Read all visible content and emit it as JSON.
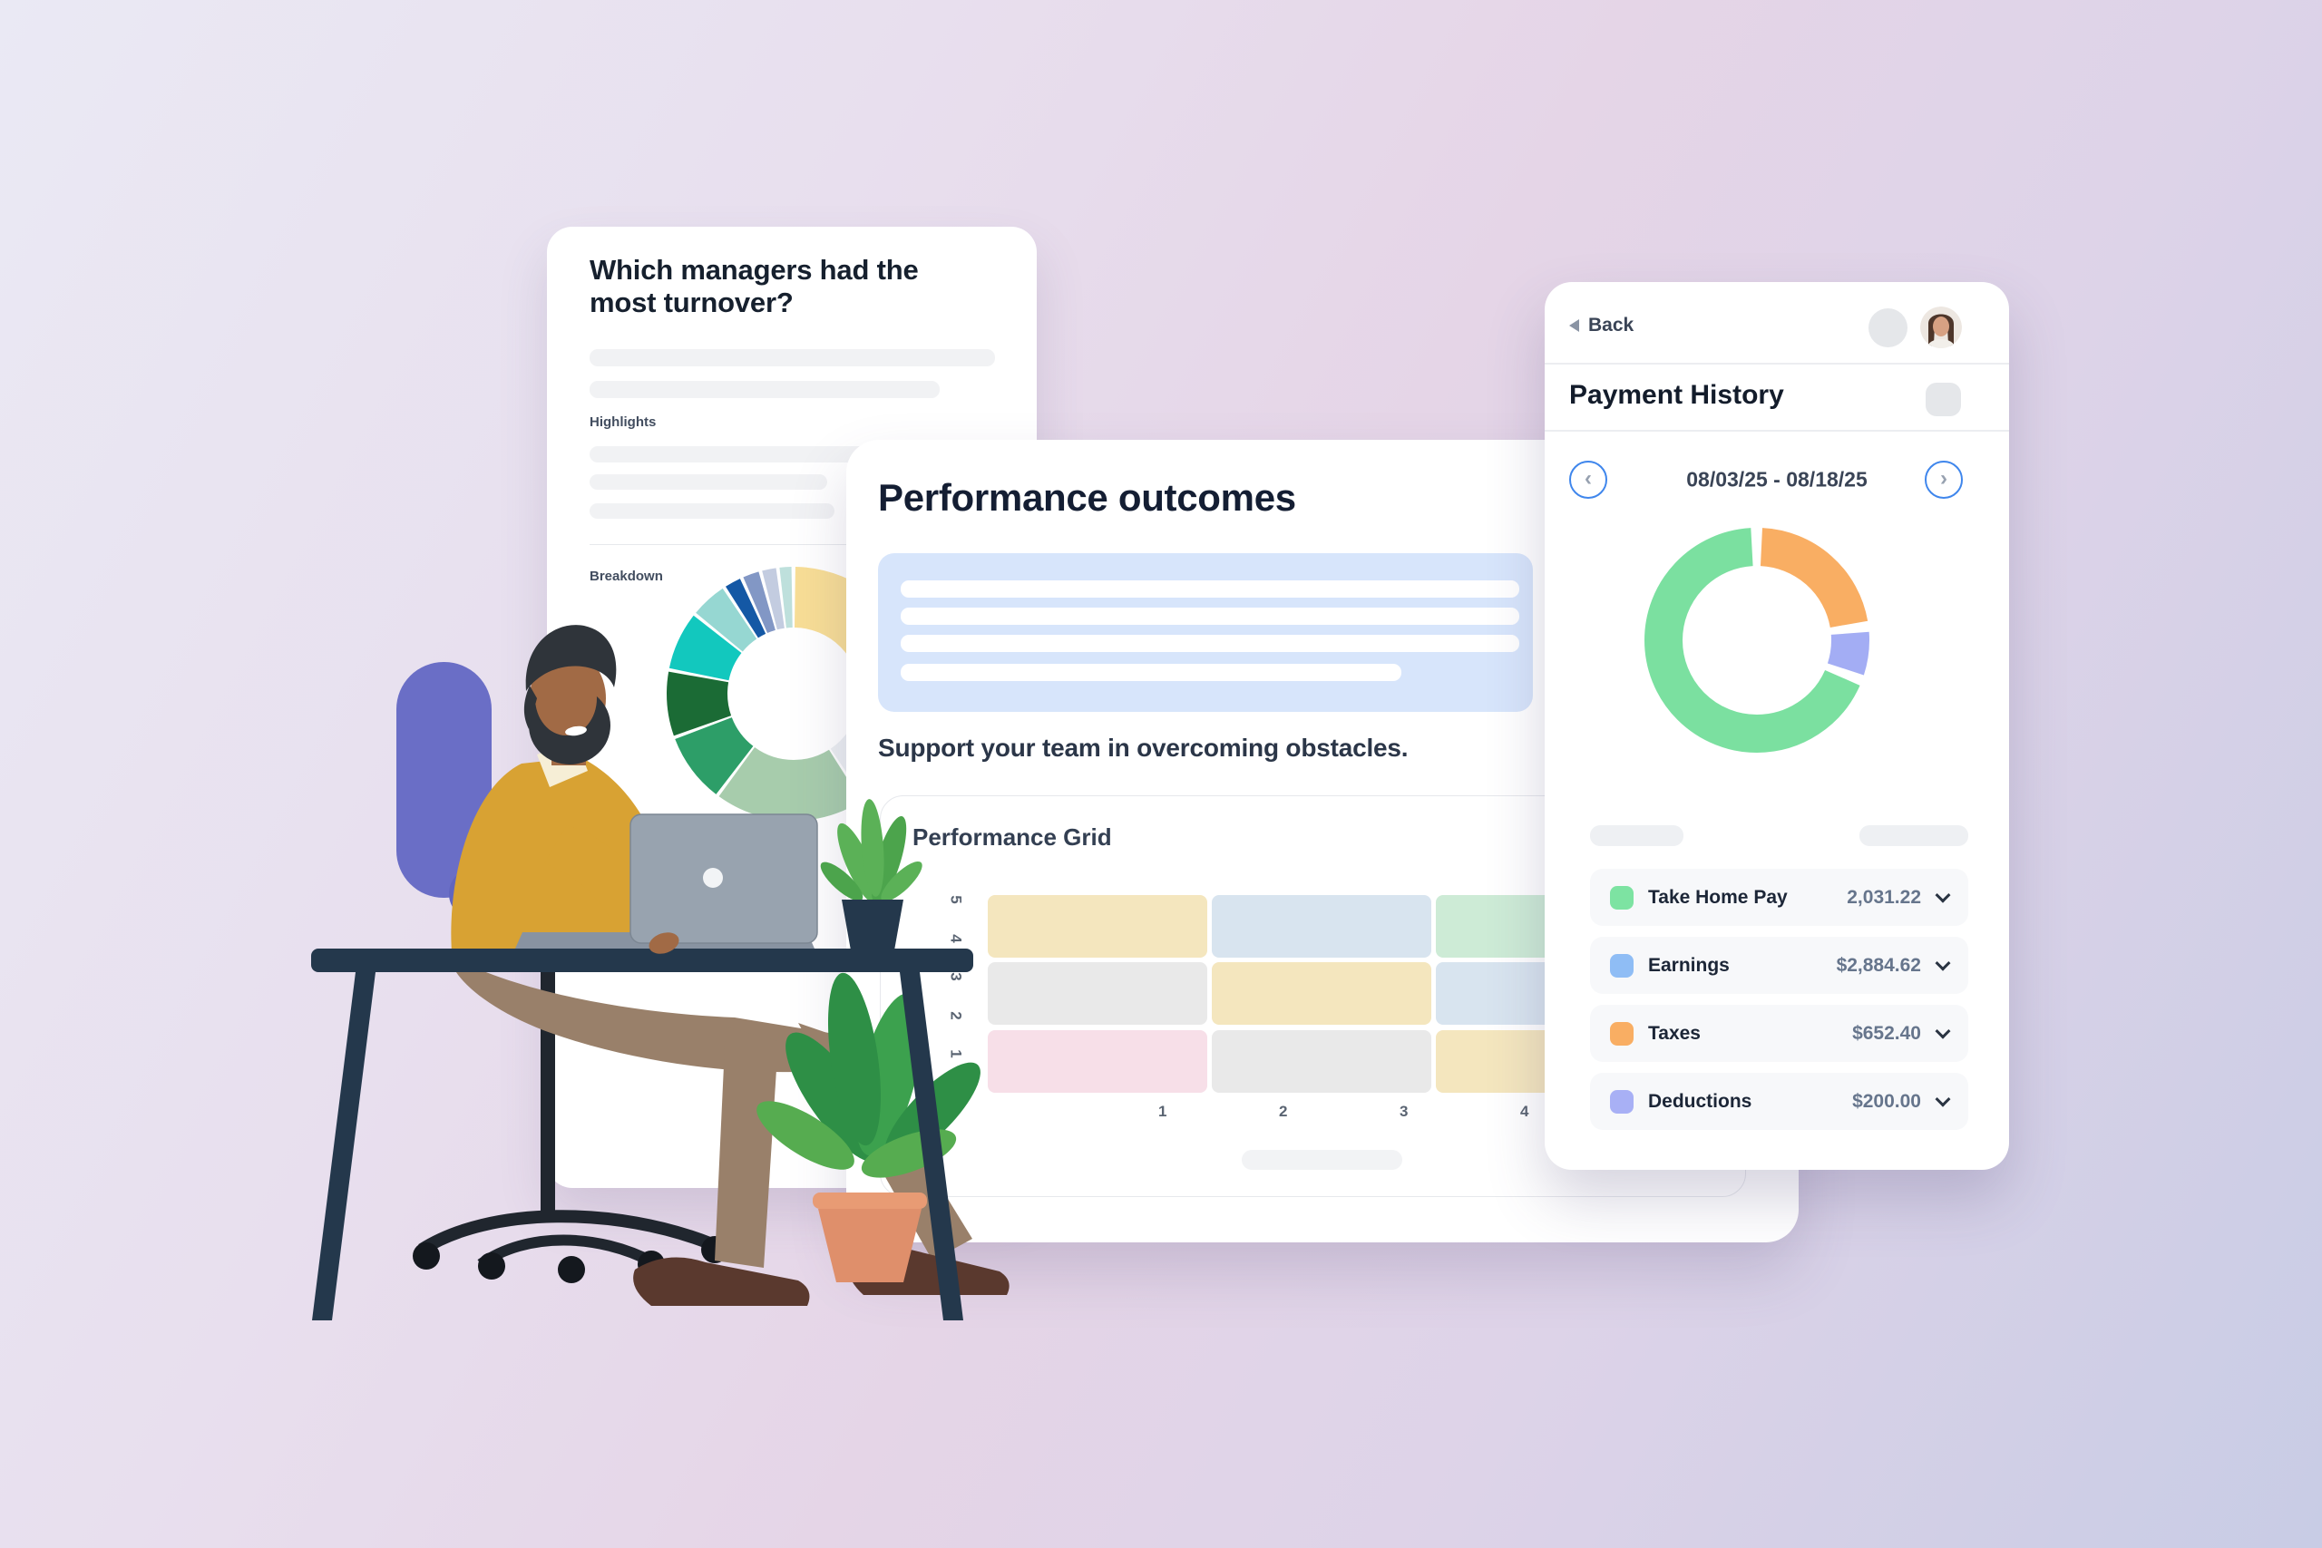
{
  "background": {
    "gradient_from": "#EAE9F4",
    "gradient_mid": "#E5D5E7",
    "gradient_to": "#C8CCE5"
  },
  "left_card": {
    "title": "Which managers had the most turnover?",
    "highlights_label": "Highlights",
    "breakdown_label": "Breakdown",
    "chart_data": {
      "type": "pie",
      "title": "Breakdown",
      "donut": true,
      "legend_position": "none",
      "segments": [
        {
          "name": "yellow",
          "start_deg": 0,
          "end_deg": 100,
          "color": "#F8DE96"
        },
        {
          "name": "occluded",
          "start_deg": 100,
          "end_deg": 147,
          "color": "#ECEFF2"
        },
        {
          "name": "sage-green",
          "start_deg": 147,
          "end_deg": 217,
          "color": "#A7CCAC"
        },
        {
          "name": "green",
          "start_deg": 217,
          "end_deg": 250,
          "color": "#2D9E68"
        },
        {
          "name": "dark-green",
          "start_deg": 250,
          "end_deg": 281,
          "color": "#1B6B35"
        },
        {
          "name": "cyan",
          "start_deg": 281,
          "end_deg": 309,
          "color": "#12C8BE"
        },
        {
          "name": "light-teal",
          "start_deg": 309,
          "end_deg": 327,
          "color": "#96D7D2"
        },
        {
          "name": "dark-blue",
          "start_deg": 327,
          "end_deg": 336,
          "color": "#1458A5"
        },
        {
          "name": "steel-blue",
          "start_deg": 336,
          "end_deg": 345,
          "color": "#8297C5"
        },
        {
          "name": "blue-gray",
          "start_deg": 345,
          "end_deg": 353,
          "color": "#C3CCE0"
        },
        {
          "name": "pale-teal",
          "start_deg": 353,
          "end_deg": 360,
          "color": "#BEE0DC"
        }
      ]
    }
  },
  "middle_card": {
    "title": "Performance outcomes",
    "subtitle": "Support your team in overcoming obstacles.",
    "grid_title": "Performance Grid",
    "chart_data": {
      "type": "heatmap",
      "title": "Performance Grid",
      "x_ticks": [
        "1",
        "2",
        "3",
        "4"
      ],
      "y_ticks": [
        "0",
        "1",
        "2",
        "3",
        "4",
        "5"
      ],
      "y_range": [
        0,
        5
      ],
      "grid": false,
      "rows": [
        {
          "band": "top",
          "colors": [
            "#F4E6BE",
            "#D8E4EF",
            "#CDEBD6"
          ]
        },
        {
          "band": "middle",
          "colors": [
            "#E9E9E9",
            "#F4E6BE",
            "#D8E4EF"
          ]
        },
        {
          "band": "bottom",
          "colors": [
            "#F7DFE8",
            "#E9E9E9",
            "#F4E6BE"
          ]
        }
      ]
    }
  },
  "right_card": {
    "back_label": "Back",
    "title": "Payment History",
    "date_range": "08/03/25 - 08/18/25",
    "chart_data": {
      "type": "pie",
      "donut": true,
      "legend_position": "list-below",
      "segments": [
        {
          "label": "Taxes",
          "value": 652.4,
          "color": "#F9AE63",
          "start_deg": 2,
          "end_deg": 81
        },
        {
          "label": "Deductions",
          "value": 200.0,
          "color": "#A3ADF4",
          "start_deg": 85,
          "end_deg": 109
        },
        {
          "label": "Take Home Pay",
          "value": 2031.22,
          "color": "#7BE0A0",
          "start_deg": 113,
          "end_deg": 358
        }
      ]
    },
    "rows": [
      {
        "label": "Take Home Pay",
        "value": "2,031.22",
        "color": "#7DE3A2"
      },
      {
        "label": "Earnings",
        "value": "$2,884.62",
        "color": "#8FBDF5"
      },
      {
        "label": "Taxes",
        "value": "$652.40",
        "color": "#F9AE63"
      },
      {
        "label": "Deductions",
        "value": "$200.00",
        "color": "#A8B0F5"
      }
    ]
  }
}
